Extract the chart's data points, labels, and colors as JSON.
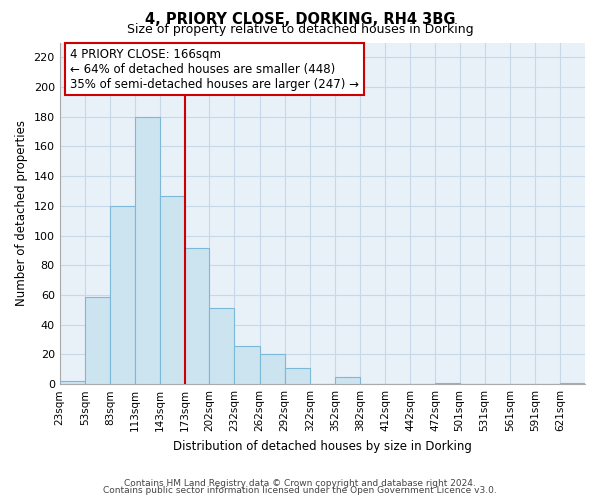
{
  "title": "4, PRIORY CLOSE, DORKING, RH4 3BG",
  "subtitle": "Size of property relative to detached houses in Dorking",
  "xlabel": "Distribution of detached houses by size in Dorking",
  "ylabel": "Number of detached properties",
  "bar_color": "#cce4f0",
  "bar_edge_color": "#7cb8d8",
  "grid_color": "#c8d8e8",
  "reference_line_x": 173,
  "reference_line_color": "#cc0000",
  "bin_edges": [
    23,
    53,
    83,
    113,
    143,
    173,
    202,
    232,
    262,
    292,
    322,
    352,
    382,
    412,
    442,
    472,
    501,
    531,
    561,
    591,
    621,
    651
  ],
  "bin_labels": [
    "23sqm",
    "53sqm",
    "83sqm",
    "113sqm",
    "143sqm",
    "173sqm",
    "202sqm",
    "232sqm",
    "262sqm",
    "292sqm",
    "322sqm",
    "352sqm",
    "382sqm",
    "412sqm",
    "442sqm",
    "472sqm",
    "501sqm",
    "531sqm",
    "561sqm",
    "591sqm",
    "621sqm"
  ],
  "counts": [
    2,
    59,
    120,
    180,
    127,
    92,
    51,
    26,
    20,
    11,
    0,
    5,
    0,
    0,
    0,
    1,
    0,
    0,
    0,
    0,
    1
  ],
  "ylim": [
    0,
    230
  ],
  "yticks": [
    0,
    20,
    40,
    60,
    80,
    100,
    120,
    140,
    160,
    180,
    200,
    220
  ],
  "annotation_title": "4 PRIORY CLOSE: 166sqm",
  "annotation_line1": "← 64% of detached houses are smaller (448)",
  "annotation_line2": "35% of semi-detached houses are larger (247) →",
  "annotation_box_color": "#ffffff",
  "annotation_box_edge": "#cc0000",
  "footer1": "Contains HM Land Registry data © Crown copyright and database right 2024.",
  "footer2": "Contains public sector information licensed under the Open Government Licence v3.0.",
  "background_color": "#ffffff",
  "plot_bg_color": "#e8f0f8"
}
